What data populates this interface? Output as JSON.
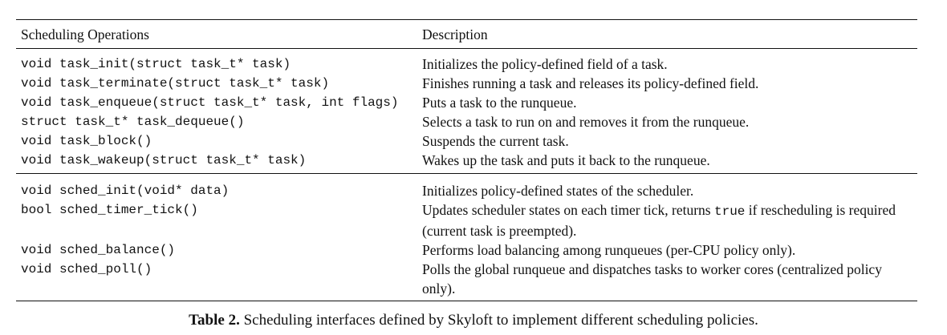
{
  "table": {
    "headers": [
      "Scheduling Operations",
      "Description"
    ],
    "groups": [
      [
        {
          "op": "void task_init(struct task_t* task)",
          "desc": "Initializes the policy-defined field of a task."
        },
        {
          "op": "void task_terminate(struct task_t* task)",
          "desc": "Finishes running a task and releases its policy-defined field."
        },
        {
          "op": "void task_enqueue(struct task_t* task, int flags)",
          "desc": "Puts a task to the runqueue."
        },
        {
          "op": "struct task_t* task_dequeue()",
          "desc": "Selects a task to run on and removes it from the runqueue."
        },
        {
          "op": "void task_block()",
          "desc": "Suspends the current task."
        },
        {
          "op": "void task_wakeup(struct task_t* task)",
          "desc": "Wakes up the task and puts it back to the runqueue."
        }
      ],
      [
        {
          "op": "void sched_init(void* data)",
          "desc": "Initializes policy-defined states of the scheduler."
        },
        {
          "op": "bool sched_timer_tick()",
          "desc_pre": "Updates scheduler states on each timer tick, returns ",
          "desc_code": "true",
          "desc_post": " if rescheduling is required (current task is preempted)."
        },
        {
          "op": "void sched_balance()",
          "desc": "Performs load balancing among runqueues (per-CPU policy only)."
        },
        {
          "op": "void sched_poll()",
          "desc": "Polls the global runqueue and dispatches tasks to worker cores (centralized policy only)."
        }
      ]
    ]
  },
  "caption": {
    "label": "Table 2.",
    "text": " Scheduling interfaces defined by Skyloft to implement different scheduling policies."
  }
}
